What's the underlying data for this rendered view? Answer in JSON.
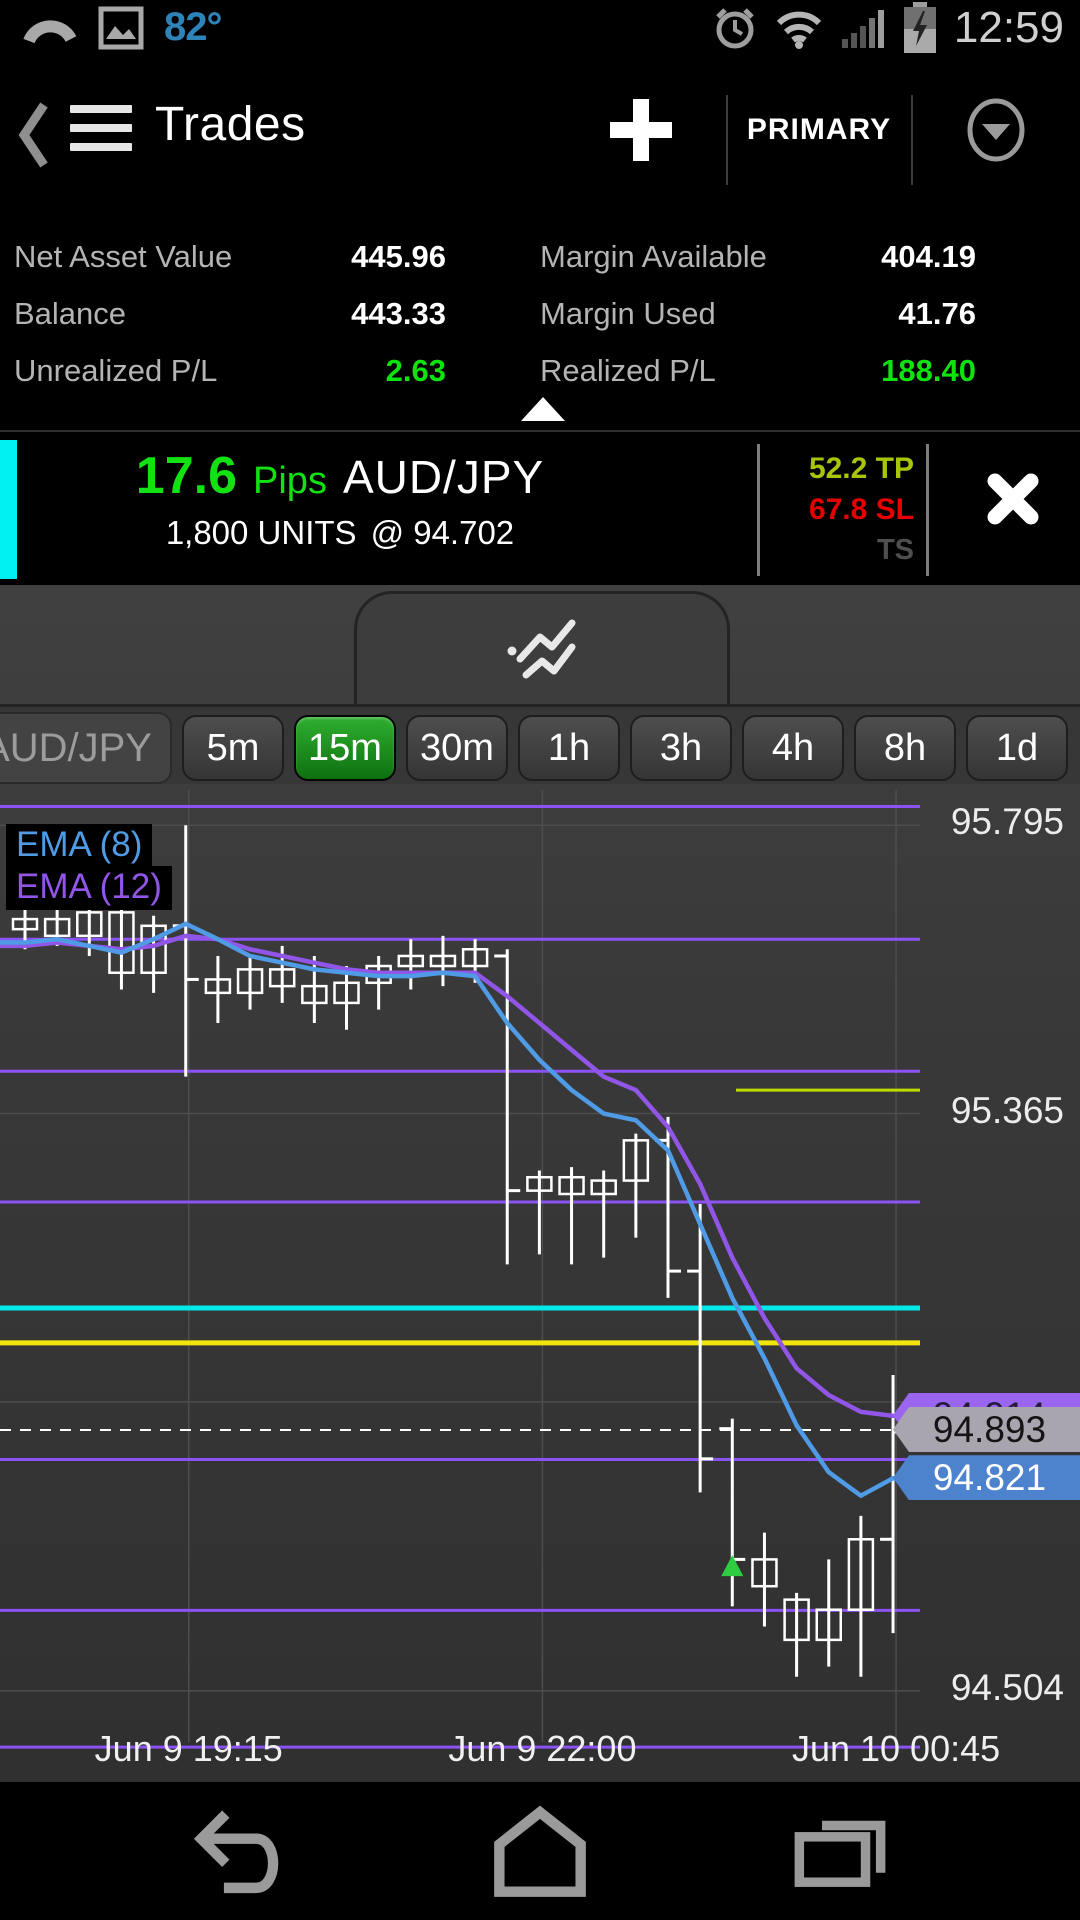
{
  "status_bar": {
    "temperature": "82°",
    "time": "12:59",
    "icons": [
      "signal-arc",
      "photo",
      "alarm-clock",
      "wifi",
      "cell-signal",
      "battery-charging"
    ]
  },
  "header": {
    "title": "Trades",
    "add_button": "+",
    "account_selector": "PRIMARY",
    "accent_color": "#2fa7d8"
  },
  "account_summary": {
    "left": [
      {
        "label": "Net Asset Value",
        "value": "445.96",
        "value_color": "#ffffff"
      },
      {
        "label": "Balance",
        "value": "443.33",
        "value_color": "#ffffff"
      },
      {
        "label": "Unrealized P/L",
        "value": "2.63",
        "value_color": "#0de30d"
      }
    ],
    "right": [
      {
        "label": "Margin Available",
        "value": "404.19",
        "value_color": "#ffffff"
      },
      {
        "label": "Margin Used",
        "value": "41.76",
        "value_color": "#ffffff"
      },
      {
        "label": "Realized P/L",
        "value": "188.40",
        "value_color": "#0de30d"
      }
    ]
  },
  "trade": {
    "pips_value": "17.6",
    "pips_label": "Pips",
    "instrument": "AUD/JPY",
    "units": "1,800 UNITS",
    "open_price": "@ 94.702",
    "take_profit": "52.2 TP",
    "stop_loss": "67.8 SL",
    "trailing_stop": "TS",
    "pips_color": "#12e212",
    "tp_color": "#a9c409",
    "sl_color": "#e80000",
    "accent_color": "#00efef"
  },
  "timeframes": {
    "pair_label": "AUD/JPY",
    "selected": "15m",
    "options": [
      "5m",
      "15m",
      "30m",
      "1h",
      "3h",
      "4h",
      "8h",
      "1d"
    ]
  },
  "chart_data": {
    "type": "candlestick",
    "instrument": "AUD/JPY",
    "interval": "15m",
    "legend": [
      {
        "label": "EMA (8)",
        "color": "#4f9be5"
      },
      {
        "label": "EMA (12)",
        "color": "#9156e8"
      }
    ],
    "y_axis": {
      "top_price": 95.855,
      "bottom_price": 94.368,
      "labels": [
        "95.795",
        "95.365",
        "94.504"
      ],
      "label_prices": [
        95.795,
        95.365,
        94.504
      ],
      "grid_prices": [
        95.795,
        95.365,
        94.935,
        94.504
      ]
    },
    "x_axis": [
      {
        "label": "Jun 9 19:15",
        "bar_index": 5
      },
      {
        "label": "Jun 9 22:00",
        "bar_index": 16
      },
      {
        "label": "Jun 10 00:45",
        "bar_index": 27
      }
    ],
    "bars": [
      [
        95.64,
        95.67,
        95.61,
        95.655
      ],
      [
        95.655,
        95.675,
        95.615,
        95.63
      ],
      [
        95.63,
        95.685,
        95.6,
        95.665
      ],
      [
        95.665,
        95.68,
        95.55,
        95.575
      ],
      [
        95.575,
        95.66,
        95.545,
        95.645
      ],
      [
        95.645,
        95.795,
        95.42,
        95.565
      ],
      [
        95.565,
        95.6,
        95.5,
        95.545
      ],
      [
        95.545,
        95.6,
        95.52,
        95.58
      ],
      [
        95.58,
        95.615,
        95.53,
        95.555
      ],
      [
        95.555,
        95.6,
        95.5,
        95.53
      ],
      [
        95.53,
        95.585,
        95.49,
        95.56
      ],
      [
        95.56,
        95.6,
        95.52,
        95.585
      ],
      [
        95.585,
        95.625,
        95.55,
        95.6
      ],
      [
        95.6,
        95.63,
        95.555,
        95.585
      ],
      [
        95.585,
        95.625,
        95.56,
        95.61
      ],
      [
        95.6,
        95.61,
        95.14,
        95.25
      ],
      [
        95.25,
        95.28,
        95.155,
        95.27
      ],
      [
        95.27,
        95.285,
        95.14,
        95.245
      ],
      [
        95.245,
        95.28,
        95.15,
        95.265
      ],
      [
        95.265,
        95.335,
        95.18,
        95.325
      ],
      [
        95.325,
        95.36,
        95.09,
        95.13
      ],
      [
        95.13,
        95.23,
        94.8,
        94.85
      ],
      [
        94.895,
        94.91,
        94.63,
        94.7
      ],
      [
        94.7,
        94.74,
        94.6,
        94.66
      ],
      [
        94.64,
        94.65,
        94.525,
        94.58
      ],
      [
        94.58,
        94.7,
        94.54,
        94.625
      ],
      [
        94.625,
        94.765,
        94.525,
        94.73
      ],
      [
        94.73,
        94.975,
        94.59,
        94.89
      ]
    ],
    "tick_style_indices": [
      5,
      15,
      20,
      21,
      22,
      27
    ],
    "ema8": [
      95.62,
      95.625,
      95.615,
      95.605,
      95.625,
      95.648,
      95.625,
      95.6,
      95.59,
      95.58,
      95.575,
      95.57,
      95.57,
      95.575,
      95.57,
      95.5,
      95.445,
      95.4,
      95.365,
      95.355,
      95.31,
      95.2,
      95.09,
      95.0,
      94.9,
      94.83,
      94.795,
      94.821
    ],
    "ema12": [
      95.615,
      95.62,
      95.615,
      95.61,
      95.615,
      95.63,
      95.625,
      95.61,
      95.6,
      95.59,
      95.58,
      95.575,
      95.575,
      95.575,
      95.575,
      95.54,
      95.5,
      95.46,
      95.42,
      95.4,
      95.345,
      95.26,
      95.15,
      95.06,
      94.985,
      94.945,
      94.92,
      94.914
    ],
    "h_lines": [
      {
        "price": 95.823,
        "color": "#8b52f4",
        "width": 3
      },
      {
        "price": 95.625,
        "color": "#8b52f4",
        "width": 3
      },
      {
        "price": 95.428,
        "color": "#8b52f4",
        "width": 3
      },
      {
        "price": 95.233,
        "color": "#8b52f4",
        "width": 3
      },
      {
        "price": 94.849,
        "color": "#8b52f4",
        "width": 3
      },
      {
        "price": 94.624,
        "color": "#8b52f4",
        "width": 3
      },
      {
        "price": 94.42,
        "color": "#8b52f4",
        "width": 3
      },
      {
        "price": 95.075,
        "color": "#00e8e8",
        "width": 5
      },
      {
        "price": 95.023,
        "color": "#f2e50c",
        "width": 5
      },
      {
        "price": 95.4,
        "color": "#bfdc00",
        "width": 3,
        "x_from_ratio": 0.8
      },
      {
        "price": 94.893,
        "color": "#ffffff",
        "width": 2,
        "dashed": true
      }
    ],
    "price_tags": [
      {
        "text": "94.914",
        "price": 94.914,
        "bg": "#9a66f0",
        "fg": "#241c3c",
        "z": 1
      },
      {
        "text": "94.893",
        "price": 94.893,
        "bg": "#a9a5af",
        "fg": "#141414",
        "z": 2
      },
      {
        "text": "94.821",
        "price": 94.821,
        "bg": "#4d82cc",
        "fg": "#ffffff",
        "z": 1
      }
    ],
    "trade_marker": {
      "bar_index": 22,
      "price": 94.69,
      "color": "#2ecc40",
      "direction": "up"
    },
    "candle_color": "#ffffff",
    "grid_color": "#4d4d4d"
  },
  "nav_bar": {
    "items": [
      "back",
      "home",
      "recents"
    ]
  }
}
